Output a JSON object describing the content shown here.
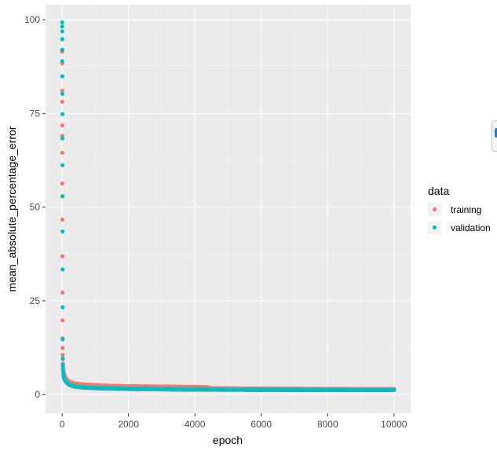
{
  "chart_data": {
    "type": "scatter",
    "title": "",
    "xlabel": "epoch",
    "ylabel": "mean_absolute_percentage_error",
    "xlim": [
      -500,
      10500
    ],
    "ylim": [
      -5,
      104
    ],
    "x_ticks": [
      0,
      2000,
      4000,
      6000,
      8000,
      10000
    ],
    "x_tick_labels": [
      "0",
      "2000",
      "4000",
      "6000",
      "8000",
      "10000"
    ],
    "y_ticks": [
      0,
      25,
      50,
      75,
      100
    ],
    "y_tick_labels": [
      "0",
      "25",
      "50",
      "75",
      "100"
    ],
    "grid": true,
    "legend": {
      "title": "data",
      "placement": "right"
    },
    "series": [
      {
        "name": "training",
        "color": "#F8766D",
        "points": [
          [
            1,
            91.5
          ],
          [
            2,
            88.3
          ],
          [
            3,
            81.0
          ],
          [
            4,
            78.1
          ],
          [
            5,
            71.8
          ],
          [
            6,
            69.0
          ],
          [
            7,
            64.5
          ],
          [
            8,
            56.3
          ],
          [
            9,
            46.7
          ],
          [
            10,
            36.9
          ],
          [
            11,
            27.2
          ],
          [
            12,
            19.8
          ],
          [
            14,
            15.0
          ],
          [
            16,
            12.4
          ],
          [
            18,
            10.6
          ],
          [
            20,
            9.4
          ],
          [
            25,
            8.2
          ],
          [
            30,
            7.4
          ],
          [
            40,
            6.5
          ],
          [
            50,
            5.8
          ],
          [
            70,
            5.1
          ],
          [
            100,
            4.5
          ],
          [
            150,
            3.9
          ],
          [
            200,
            3.5
          ],
          [
            300,
            3.1
          ],
          [
            400,
            2.9
          ],
          [
            600,
            2.7
          ],
          [
            800,
            2.6
          ],
          [
            1000,
            2.5
          ],
          [
            1500,
            2.3
          ],
          [
            2000,
            2.2
          ],
          [
            2500,
            2.15
          ],
          [
            3000,
            2.1
          ],
          [
            3500,
            2.05
          ],
          [
            4000,
            2.0
          ],
          [
            4300,
            2.0
          ],
          [
            4500,
            1.7
          ],
          [
            5000,
            1.65
          ],
          [
            5500,
            1.6
          ],
          [
            6000,
            1.6
          ],
          [
            6500,
            1.55
          ],
          [
            7000,
            1.55
          ],
          [
            7500,
            1.5
          ],
          [
            8000,
            1.5
          ],
          [
            8500,
            1.5
          ],
          [
            9000,
            1.45
          ],
          [
            9500,
            1.45
          ],
          [
            10000,
            1.45
          ]
        ]
      },
      {
        "name": "validation",
        "color": "#00BFC4",
        "points": [
          [
            1,
            99.3
          ],
          [
            2,
            98.2
          ],
          [
            3,
            96.9
          ],
          [
            4,
            94.8
          ],
          [
            5,
            92.0
          ],
          [
            6,
            88.9
          ],
          [
            7,
            84.9
          ],
          [
            8,
            80.2
          ],
          [
            9,
            74.8
          ],
          [
            10,
            68.3
          ],
          [
            11,
            61.2
          ],
          [
            12,
            52.9
          ],
          [
            13,
            43.5
          ],
          [
            14,
            33.4
          ],
          [
            15,
            23.3
          ],
          [
            16,
            14.7
          ],
          [
            18,
            9.7
          ],
          [
            20,
            8.0
          ],
          [
            25,
            7.0
          ],
          [
            30,
            6.1
          ],
          [
            40,
            5.3
          ],
          [
            50,
            4.7
          ],
          [
            70,
            4.1
          ],
          [
            100,
            3.6
          ],
          [
            150,
            3.1
          ],
          [
            200,
            2.7
          ],
          [
            300,
            2.3
          ],
          [
            400,
            2.1
          ],
          [
            600,
            1.9
          ],
          [
            800,
            1.8
          ],
          [
            1000,
            1.7
          ],
          [
            1500,
            1.6
          ],
          [
            2000,
            1.5
          ],
          [
            2500,
            1.45
          ],
          [
            3000,
            1.4
          ],
          [
            3500,
            1.35
          ],
          [
            4000,
            1.3
          ],
          [
            4500,
            1.3
          ],
          [
            5000,
            1.28
          ],
          [
            5500,
            1.27
          ],
          [
            6000,
            1.25
          ],
          [
            6500,
            1.25
          ],
          [
            7000,
            1.23
          ],
          [
            7500,
            1.22
          ],
          [
            8000,
            1.2
          ],
          [
            8500,
            1.2
          ],
          [
            9000,
            1.2
          ],
          [
            9500,
            1.2
          ],
          [
            10000,
            1.2
          ]
        ]
      }
    ]
  }
}
